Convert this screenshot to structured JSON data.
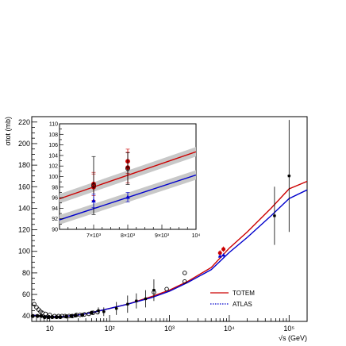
{
  "chart_data": [
    {
      "type": "scatter",
      "xlabel": "√s (GeV)",
      "ylabel": "σtot (mb)",
      "xscale": "log",
      "xlim": [
        5,
        200000
      ],
      "ylim": [
        35,
        225
      ],
      "x_tick_labels": [
        "10",
        "10²",
        "10³",
        "10⁴",
        "10⁵"
      ],
      "x_tick_values": [
        10,
        100,
        1000,
        10000,
        100000
      ],
      "y_tick_labels": [
        "40",
        "60",
        "80",
        "100",
        "120",
        "140",
        "160",
        "180",
        "200",
        "220"
      ],
      "y_tick_values": [
        40,
        60,
        80,
        100,
        120,
        140,
        160,
        180,
        200,
        220
      ],
      "legend": {
        "placement": "bottom-right",
        "entries": [
          {
            "label": "TOTEM",
            "color": "#cc0000",
            "style": "solid"
          },
          {
            "label": "ATLAS",
            "color": "#0000cc",
            "style": "dotted"
          }
        ]
      },
      "series": [
        {
          "name": "TOTEM",
          "kind": "fit_curve",
          "color": "#cc0000",
          "x": [
            5,
            7,
            10,
            15,
            20,
            30,
            50,
            70,
            100,
            200,
            500,
            1000,
            2000,
            5000,
            10000,
            20000,
            50000,
            100000,
            200000
          ],
          "y": [
            41,
            40,
            39.5,
            39.5,
            40,
            41,
            43,
            45,
            47,
            51,
            58,
            64,
            72,
            85,
            103,
            118,
            140,
            158,
            165
          ]
        },
        {
          "name": "ATLAS",
          "kind": "fit_curve",
          "color": "#0000cc",
          "x": [
            5,
            7,
            10,
            15,
            20,
            30,
            50,
            70,
            100,
            200,
            500,
            1000,
            2000,
            5000,
            10000,
            20000,
            50000,
            100000,
            200000
          ],
          "y": [
            41,
            40,
            39.5,
            39.5,
            40,
            41,
            43,
            45,
            47,
            51,
            57,
            63,
            71,
            83,
            99,
            113,
            133,
            149,
            157
          ]
        },
        {
          "kind": "data_points",
          "marker": "open-circle",
          "color": "#000000",
          "points": [
            {
              "x": 5.5,
              "y": 51
            },
            {
              "x": 6.0,
              "y": 48
            },
            {
              "x": 6.5,
              "y": 46
            },
            {
              "x": 7.0,
              "y": 44
            },
            {
              "x": 7.5,
              "y": 43
            },
            {
              "x": 8.5,
              "y": 42
            },
            {
              "x": 10,
              "y": 41
            },
            {
              "x": 12,
              "y": 40
            },
            {
              "x": 14,
              "y": 40
            },
            {
              "x": 16,
              "y": 40
            },
            {
              "x": 18,
              "y": 40
            },
            {
              "x": 21,
              "y": 40
            },
            {
              "x": 24,
              "y": 40
            },
            {
              "x": 28,
              "y": 41
            },
            {
              "x": 32,
              "y": 41
            },
            {
              "x": 38,
              "y": 41.5
            },
            {
              "x": 45,
              "y": 42
            },
            {
              "x": 53,
              "y": 43
            },
            {
              "x": 63,
              "y": 43.5
            },
            {
              "x": 550,
              "y": 62
            },
            {
              "x": 900,
              "y": 65
            },
            {
              "x": 1800,
              "y": 72
            },
            {
              "x": 1800,
              "y": 80
            }
          ]
        },
        {
          "kind": "data_points",
          "marker": "filled-circle",
          "color": "#000000",
          "points": [
            {
              "x": 5.2,
              "y": 40
            },
            {
              "x": 6.2,
              "y": 40
            },
            {
              "x": 7.2,
              "y": 40
            },
            {
              "x": 8.2,
              "y": 39
            },
            {
              "x": 9.5,
              "y": 39
            },
            {
              "x": 11,
              "y": 39
            },
            {
              "x": 13,
              "y": 39
            },
            {
              "x": 15,
              "y": 39
            },
            {
              "x": 19,
              "y": 39.5
            },
            {
              "x": 23,
              "y": 40
            },
            {
              "x": 27,
              "y": 40.5
            },
            {
              "x": 35,
              "y": 41
            },
            {
              "x": 50,
              "y": 43
            }
          ]
        },
        {
          "kind": "data_points_with_errors",
          "marker": "cross",
          "color": "#000000",
          "points": [
            {
              "x": 65,
              "y": 45,
              "err": 3
            },
            {
              "x": 80,
              "y": 44,
              "err": 4
            },
            {
              "x": 130,
              "y": 47,
              "err": 6
            },
            {
              "x": 200,
              "y": 51,
              "err": 8
            },
            {
              "x": 280,
              "y": 54,
              "err": 7
            },
            {
              "x": 400,
              "y": 56,
              "err": 8
            },
            {
              "x": 550,
              "y": 64,
              "err": 10
            },
            {
              "x": 57000,
              "y": 133,
              "err": 27
            },
            {
              "x": 100000,
              "y": 170,
              "err": 52
            }
          ]
        },
        {
          "kind": "data_points_with_errors",
          "marker": "filled-circle",
          "color": "#cc0000",
          "points": [
            {
              "x": 7000,
              "y": 98.5,
              "err": 2.5
            },
            {
              "x": 8000,
              "y": 102,
              "err": 2.5
            }
          ]
        },
        {
          "kind": "data_points_with_errors",
          "marker": "filled-triangle",
          "color": "#0000cc",
          "points": [
            {
              "x": 7000,
              "y": 95.5,
              "err": 1.5
            },
            {
              "x": 8000,
              "y": 96.5,
              "err": 1.5
            }
          ]
        }
      ]
    },
    {
      "type": "scatter",
      "role": "inset",
      "xlim": [
        6000,
        10000
      ],
      "ylim": [
        90,
        110
      ],
      "x_tick_labels": [
        "7×10³",
        "8×10³",
        "9×10³",
        "10⁴"
      ],
      "x_tick_values": [
        7000,
        8000,
        9000,
        10000
      ],
      "y_tick_labels": [
        "90",
        "92",
        "94",
        "96",
        "98",
        "100",
        "102",
        "104",
        "106",
        "108",
        "110"
      ],
      "y_tick_values": [
        90,
        92,
        94,
        96,
        98,
        100,
        102,
        104,
        106,
        108,
        110
      ],
      "bands": [
        {
          "name": "TOTEM",
          "color": "#cc0000",
          "x": [
            6000,
            10000
          ],
          "y": [
            95.8,
            104.7
          ],
          "halfwidth": 0.9
        },
        {
          "name": "ATLAS",
          "color": "#0000cc",
          "x": [
            6000,
            10000
          ],
          "y": [
            91.8,
            100.3
          ],
          "halfwidth": 0.9
        }
      ],
      "series": [
        {
          "kind": "data_points_with_errors",
          "marker": "filled-circle",
          "color": "#cc0000",
          "points": [
            {
              "x": 7000,
              "y": 98.6,
              "err": 2.2
            },
            {
              "x": 7000,
              "y": 98.0,
              "err": 2.5
            },
            {
              "x": 8000,
              "y": 102.9,
              "err": 2.3
            },
            {
              "x": 8000,
              "y": 101.7,
              "err": 2.9
            }
          ]
        },
        {
          "kind": "data_points_with_errors",
          "marker": "open-circle",
          "color": "#000000",
          "points": [
            {
              "x": 7000,
              "y": 98.3,
              "err": 5.5
            },
            {
              "x": 8000,
              "y": 101.5,
              "err": 3.0
            }
          ]
        },
        {
          "kind": "data_points_with_errors",
          "marker": "filled-triangle",
          "color": "#0000cc",
          "points": [
            {
              "x": 7000,
              "y": 95.4,
              "err": 1.3
            },
            {
              "x": 8000,
              "y": 96.1,
              "err": 0.9
            }
          ]
        }
      ]
    }
  ]
}
